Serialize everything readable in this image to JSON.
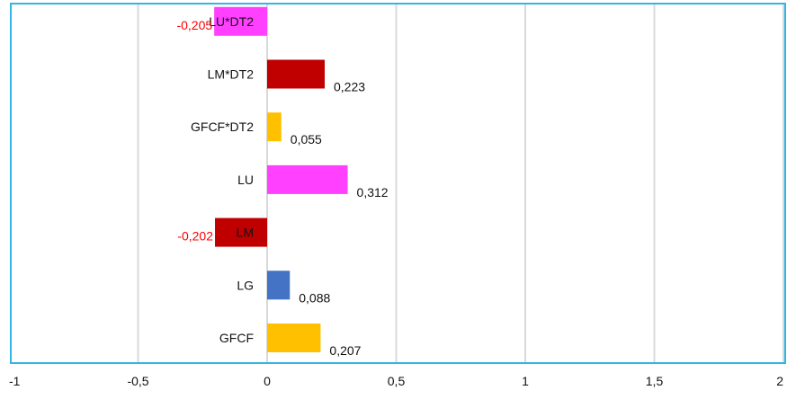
{
  "chart_data": {
    "type": "bar",
    "orientation": "horizontal",
    "categories": [
      "GFCF",
      "LG",
      "LM",
      "LU",
      "GFCF*DT2",
      "LM*DT2",
      "LU*DT2"
    ],
    "values": [
      0.207,
      0.088,
      -0.202,
      0.312,
      0.055,
      0.223,
      -0.205
    ],
    "data_labels": [
      "0,207",
      "0,088",
      "-0,202",
      "0,312",
      "0,055",
      "0,223",
      "-0,205"
    ],
    "bar_colors": [
      "#ffc000",
      "#4472c4",
      "#c00000",
      "#ff40ff",
      "#ffc000",
      "#c00000",
      "#ff40ff"
    ],
    "data_label_colors": [
      "#111111",
      "#111111",
      "#ff0000",
      "#111111",
      "#111111",
      "#111111",
      "#ff0000"
    ],
    "xlim": [
      -1,
      2
    ],
    "xticks": [
      -1,
      -0.5,
      0,
      0.5,
      1,
      1.5,
      2
    ],
    "xtick_labels": [
      "-1",
      "-0,5",
      "0",
      "0,5",
      "1",
      "1,5",
      "2"
    ],
    "grid": true,
    "frame_color": "#35b5e5",
    "grid_color": "#d9d9d9",
    "title": "",
    "xlabel": "",
    "ylabel": ""
  }
}
